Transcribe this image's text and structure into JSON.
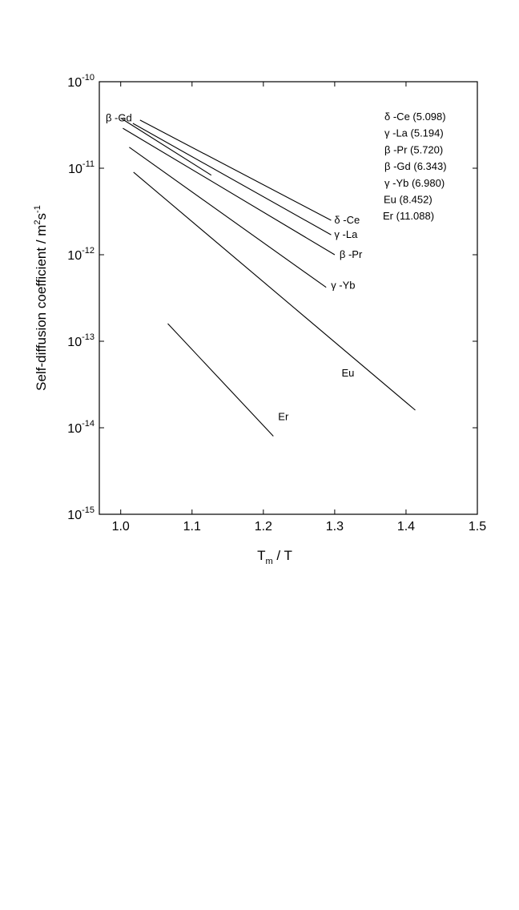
{
  "chart_data": {
    "type": "line",
    "title": "",
    "xlabel": {
      "main": "T",
      "sub": "m",
      "rest": " / T"
    },
    "ylabel": {
      "main": "Self-diffusion coefficient / m",
      "sup1": "2",
      "mid": "s",
      "sup2": "-1"
    },
    "x_scale": "linear",
    "y_scale": "log",
    "xlim": [
      0.97,
      1.5
    ],
    "ylim": [
      1e-15,
      1e-10
    ],
    "x_ticks": [
      1.0,
      1.1,
      1.2,
      1.3,
      1.4,
      1.5
    ],
    "x_tick_labels": [
      "1.0",
      "1.1",
      "1.2",
      "1.3",
      "1.4",
      "1.5"
    ],
    "y_ticks": [
      {
        "exp": -15,
        "base": "10",
        "exp_label": "-15"
      },
      {
        "exp": -14,
        "base": "10",
        "exp_label": "-14"
      },
      {
        "exp": -13,
        "base": "10",
        "exp_label": "-13"
      },
      {
        "exp": -12,
        "base": "10",
        "exp_label": "-12"
      },
      {
        "exp": -11,
        "base": "10",
        "exp_label": "-11"
      },
      {
        "exp": -10,
        "base": "10",
        "exp_label": "-10"
      }
    ],
    "grid": false,
    "series": [
      {
        "name": "δ -Ce",
        "label": "δ -Ce",
        "x": [
          1.027,
          1.295
        ],
        "y": [
          3.6e-11,
          2.5e-12
        ]
      },
      {
        "name": "γ -La",
        "label": "γ -La",
        "x": [
          1.017,
          1.295
        ],
        "y": [
          3.3e-11,
          1.7e-12
        ]
      },
      {
        "name": "β -Pr",
        "label": "β -Pr",
        "x": [
          1.003,
          1.3
        ],
        "y": [
          2.9e-11,
          1e-12
        ]
      },
      {
        "name": "β -Gd",
        "label": "β -Gd",
        "x": [
          1.0,
          1.127
        ],
        "y": [
          3.8e-11,
          8.3e-12
        ]
      },
      {
        "name": "γ -Yb",
        "label": "γ -Yb",
        "x": [
          1.012,
          1.288
        ],
        "y": [
          1.75e-11,
          4.2e-13
        ]
      },
      {
        "name": "Eu",
        "label": "Eu",
        "x": [
          1.018,
          1.413
        ],
        "y": [
          9e-12,
          1.6e-14
        ]
      },
      {
        "name": "Er",
        "label": "Er",
        "x": [
          1.066,
          1.214
        ],
        "y": [
          1.6e-13,
          8e-15
        ]
      }
    ],
    "legend": {
      "placement": "top-right",
      "entries": [
        "δ -Ce (5.098)",
        "γ -La (5.194)",
        "β -Pr (5.720)",
        "β -Gd (6.343)",
        "γ -Yb (6.980)",
        "Eu (8.452)",
        "Er (11.088)"
      ]
    }
  }
}
